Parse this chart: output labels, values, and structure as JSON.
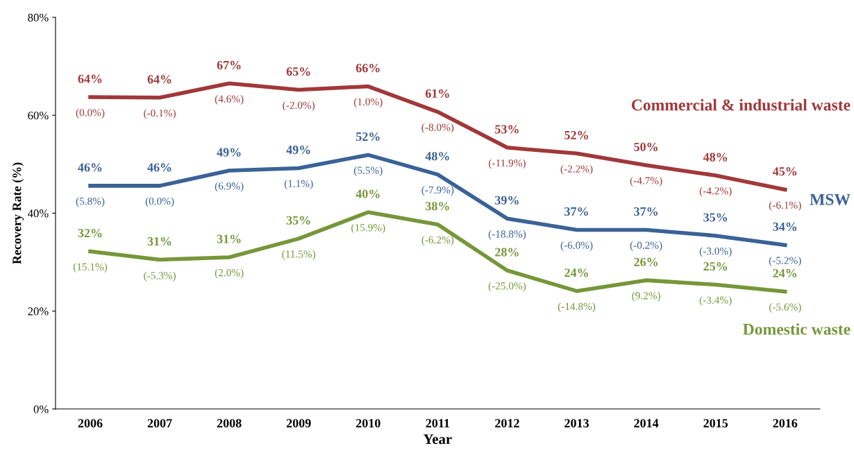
{
  "chart_data": {
    "type": "line",
    "xlabel": "Year",
    "ylabel": "Recovery Rate (%)",
    "categories": [
      "2006",
      "2007",
      "2008",
      "2009",
      "2010",
      "2011",
      "2012",
      "2013",
      "2014",
      "2015",
      "2016"
    ],
    "ylim": [
      0,
      80
    ],
    "yticks": [
      {
        "value": 0,
        "label": "0%"
      },
      {
        "value": 20,
        "label": "20%"
      },
      {
        "value": 40,
        "label": "40%"
      },
      {
        "value": 60,
        "label": "60%"
      },
      {
        "value": 80,
        "label": "80%"
      }
    ],
    "grid": false,
    "legend": false,
    "marker": "none",
    "line_style": "solid",
    "series": [
      {
        "name": "Commercial & industrial waste",
        "color": "#a0383a",
        "values": [
          63.7,
          63.6,
          66.5,
          65.2,
          65.9,
          60.7,
          53.4,
          52.2,
          49.8,
          47.7,
          44.8
        ],
        "value_labels": [
          "64%",
          "64%",
          "67%",
          "65%",
          "66%",
          "61%",
          "53%",
          "52%",
          "50%",
          "48%",
          "45%"
        ]
      },
      {
        "name": "MSW",
        "color": "#3a6296",
        "values": [
          45.6,
          45.6,
          48.7,
          49.2,
          51.9,
          47.9,
          38.9,
          36.6,
          36.6,
          35.4,
          33.5
        ],
        "value_labels": [
          "46%",
          "46%",
          "49%",
          "49%",
          "52%",
          "48%",
          "39%",
          "37%",
          "37%",
          "35%",
          "34%"
        ]
      },
      {
        "name": "Domestic waste",
        "color": "#77963a",
        "values": [
          32.2,
          30.5,
          31.0,
          34.8,
          40.2,
          37.7,
          28.3,
          24.1,
          26.3,
          25.4,
          24.0
        ],
        "value_labels": [
          "32%",
          "31%",
          "31%",
          "35%",
          "40%",
          "38%",
          "28%",
          "24%",
          "26%",
          "25%",
          "24%"
        ]
      }
    ],
    "annotations": [
      {
        "text": "(0.0%)",
        "x": "2006",
        "y": 63.7
      },
      {
        "text": "(-0.1%)",
        "x": "2007",
        "y": 63.6
      },
      {
        "text": "(4.6%)",
        "x": "2008",
        "y": 66.5
      },
      {
        "text": "(-2.0%)",
        "x": "2009",
        "y": 65.2
      },
      {
        "text": "(1.0%)",
        "x": "2010",
        "y": 65.9
      },
      {
        "text": "(-8.0%)",
        "x": "2011",
        "y": 60.7
      },
      {
        "text": "(-11.9%)",
        "x": "2012",
        "y": 53.4
      },
      {
        "text": "(-2.2%)",
        "x": "2013",
        "y": 52.2
      },
      {
        "text": "(-4.7%)",
        "x": "2014",
        "y": 49.8
      },
      {
        "text": "(-4.2%)",
        "x": "2015",
        "y": 47.7
      },
      {
        "text": "(-6.1%)",
        "x": "2016",
        "y": 44.8
      },
      {
        "text": "(5.8%)",
        "x": "2006",
        "y": 45.6
      },
      {
        "text": "(0.0%)",
        "x": "2007",
        "y": 45.6
      },
      {
        "text": "(6.9%)",
        "x": "2008",
        "y": 48.7
      },
      {
        "text": "(1.1%)",
        "x": "2009",
        "y": 49.2
      },
      {
        "text": "(5.5%)",
        "x": "2010",
        "y": 51.9
      },
      {
        "text": "(-7.9%)",
        "x": "2011",
        "y": 47.9
      },
      {
        "text": "(-18.8%)",
        "x": "2012",
        "y": 38.9
      },
      {
        "text": "(-6.0%)",
        "x": "2013",
        "y": 36.6
      },
      {
        "text": "(-0.2%)",
        "x": "2014",
        "y": 36.6
      },
      {
        "text": "(-3.0%)",
        "x": "2015",
        "y": 35.4
      },
      {
        "text": "(-5.2%)",
        "x": "2016",
        "y": 33.5
      },
      {
        "text": "(15.1%)",
        "x": "2006",
        "y": 32.2
      },
      {
        "text": "(-5.3%)",
        "x": "2007",
        "y": 30.4
      },
      {
        "text": "(2.0%)",
        "x": "2008",
        "y": 31.0
      },
      {
        "text": "(11.5%)",
        "x": "2009",
        "y": 34.8
      },
      {
        "text": "(15.9%)",
        "x": "2010",
        "y": 40.2
      },
      {
        "text": "(-6.2%)",
        "x": "2011",
        "y": 37.7
      },
      {
        "text": "(-25.0%)",
        "x": "2012",
        "y": 28.3
      },
      {
        "text": "(-14.8%)",
        "x": "2013",
        "y": 24.1
      },
      {
        "text": "(9.2%)",
        "x": "2014",
        "y": 26.3
      },
      {
        "text": "(-3.4%)",
        "x": "2015",
        "y": 25.4
      },
      {
        "text": "(-5.6%)",
        "x": "2016",
        "y": 24.0
      }
    ]
  }
}
